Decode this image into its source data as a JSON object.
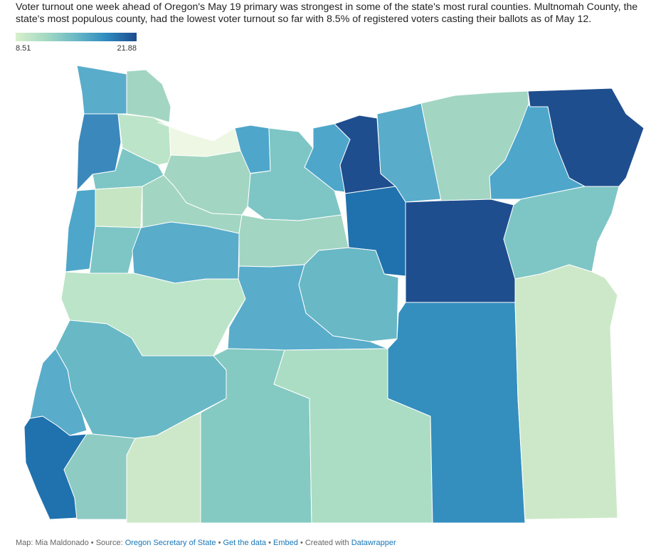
{
  "description": "Voter turnout one week ahead of Oregon's May 19 primary was strongest in some of the state's most rural counties. Multnomah County, the state's most populous county, had the lowest voter turnout so far with 8.5% of registered voters casting their ballots as of May 12.",
  "legend": {
    "min": "8.51",
    "max": "21.88",
    "min_value": 8.51,
    "max_value": 21.88
  },
  "colors": {
    "low": "#d8efcc",
    "mid": "#69b8c6",
    "high": "#1d4b8e",
    "outline": "#ffffff"
  },
  "footer": {
    "map_by": "Map: Mia Maldonado",
    "source_prefix": "Source:",
    "source_link": "Oregon Secretary of State",
    "get_data": "Get the data",
    "embed": "Embed",
    "created_with": "Created with",
    "tool": "Datawrapper",
    "separator": "•"
  }
}
